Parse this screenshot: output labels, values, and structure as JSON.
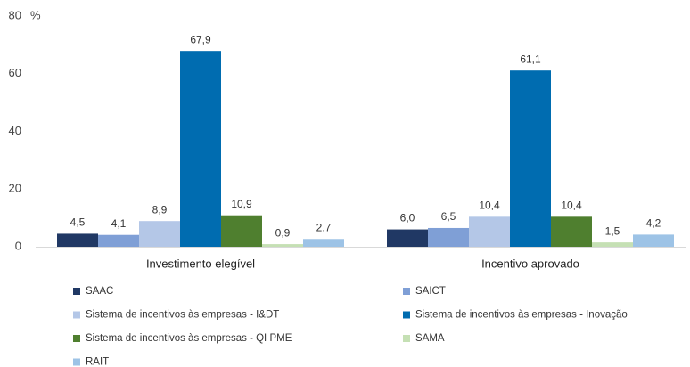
{
  "chart_data": {
    "type": "bar",
    "y_unit": "%",
    "categories": [
      "Investimento elegível",
      "Incentivo aprovado"
    ],
    "series": [
      {
        "name": "SAAC",
        "color": "#203864",
        "values": [
          4.5,
          6.0
        ],
        "value_labels": [
          "4,5",
          "6,0"
        ]
      },
      {
        "name": "SAICT",
        "color": "#7f9fd6",
        "values": [
          4.1,
          6.5
        ],
        "value_labels": [
          "4,1",
          "6,5"
        ]
      },
      {
        "name": "Sistema de incentivos às empresas - I&DT",
        "color": "#b4c7e7",
        "values": [
          8.9,
          10.4
        ],
        "value_labels": [
          "8,9",
          "10,4"
        ]
      },
      {
        "name": "Sistema de incentivos às empresas - Inovação",
        "color": "#006cb0",
        "values": [
          67.9,
          61.1
        ],
        "value_labels": [
          "67,9",
          "61,1"
        ]
      },
      {
        "name": "Sistema de incentivos às empresas - QI PME",
        "color": "#4f7f2f",
        "values": [
          10.9,
          10.4
        ],
        "value_labels": [
          "10,9",
          "10,4"
        ]
      },
      {
        "name": "SAMA",
        "color": "#c5e0b4",
        "values": [
          0.9,
          1.5
        ],
        "value_labels": [
          "0,9",
          "1,5"
        ]
      },
      {
        "name": "RAIT",
        "color": "#9dc3e6",
        "values": [
          2.7,
          4.2
        ],
        "value_labels": [
          "2,7",
          "4,2"
        ]
      }
    ],
    "ylim": [
      0,
      80
    ],
    "yticks": [
      0,
      20,
      40,
      60,
      80
    ],
    "grid": false,
    "legend": "bottom"
  }
}
